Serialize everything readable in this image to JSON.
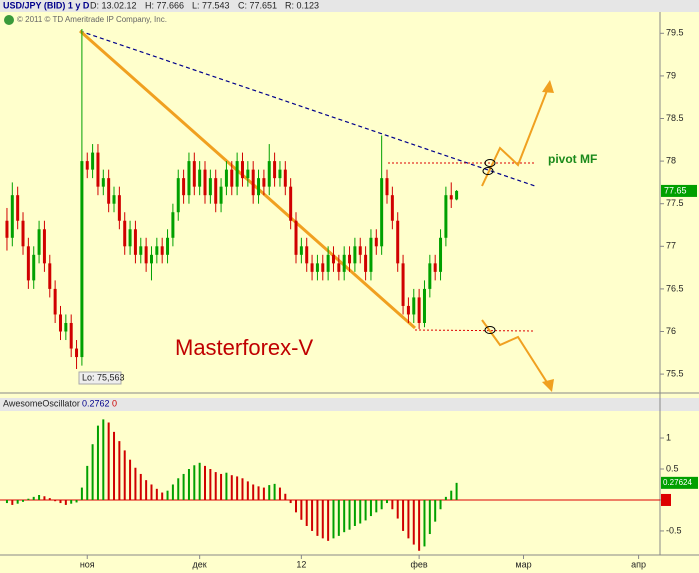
{
  "header": {
    "symbol": "USD/JPY (BID) 1 y D",
    "date": "D: 13.02.12",
    "high": "H: 77.666",
    "low": "L: 77.543",
    "close": "C: 77.651",
    "range": "R: 0.123",
    "copyright": "© 2011 © TD Ameritrade IP Company, Inc."
  },
  "annotations": {
    "title": "Masterforex-V",
    "pivot": "pivot MF",
    "low_label": "Lo: 75,563"
  },
  "chart_data": [
    {
      "type": "candlestick",
      "last_label": "77.65",
      "x": [
        0,
        1,
        2,
        3,
        4,
        5,
        6,
        7,
        8,
        9,
        10,
        11,
        12,
        13,
        14,
        15,
        16,
        17,
        18,
        19,
        20,
        21,
        22,
        23,
        24,
        25,
        26,
        27,
        28,
        29,
        30,
        31,
        32,
        33,
        34,
        35,
        36,
        37,
        38,
        39,
        40,
        41,
        42,
        43,
        44,
        45,
        46,
        47,
        48,
        49,
        50,
        51,
        52,
        53,
        54,
        55,
        56,
        57,
        58,
        59,
        60,
        61,
        62,
        63,
        64,
        65,
        66,
        67,
        68,
        69,
        70,
        71,
        72,
        73,
        74,
        75,
        76,
        77,
        78,
        79,
        80,
        81,
        82,
        83,
        84
      ],
      "open": [
        77.3,
        77.1,
        77.6,
        77.3,
        77.0,
        76.6,
        76.9,
        77.2,
        76.8,
        76.5,
        76.2,
        76.0,
        76.1,
        75.8,
        75.7,
        78.0,
        77.9,
        78.1,
        77.7,
        77.8,
        77.5,
        77.6,
        77.3,
        77.0,
        77.2,
        76.9,
        77.0,
        76.8,
        76.9,
        77.0,
        76.9,
        77.1,
        77.4,
        77.8,
        77.6,
        78.0,
        77.7,
        77.9,
        77.6,
        77.8,
        77.5,
        77.7,
        77.9,
        77.7,
        78.0,
        77.8,
        77.9,
        77.6,
        77.8,
        77.7,
        78.0,
        77.8,
        77.9,
        77.7,
        77.3,
        76.9,
        77.0,
        76.8,
        76.7,
        76.8,
        76.7,
        76.9,
        76.8,
        76.7,
        76.9,
        76.8,
        77.0,
        76.9,
        76.7,
        77.1,
        77.0,
        77.8,
        77.6,
        77.3,
        76.8,
        76.3,
        76.2,
        76.4,
        76.1,
        76.5,
        76.8,
        76.7,
        77.1,
        77.6,
        77.55
      ],
      "high": [
        77.45,
        77.75,
        77.7,
        77.4,
        77.1,
        77.0,
        77.3,
        77.3,
        76.9,
        76.6,
        76.3,
        76.2,
        76.2,
        75.9,
        79.55,
        78.1,
        78.2,
        78.2,
        77.9,
        77.9,
        77.7,
        77.7,
        77.4,
        77.3,
        77.3,
        77.1,
        77.1,
        77.0,
        77.1,
        77.1,
        77.2,
        77.5,
        77.9,
        77.9,
        78.1,
        78.1,
        78.0,
        78.0,
        77.9,
        77.9,
        77.8,
        78.0,
        78.0,
        78.1,
        78.1,
        78.0,
        78.0,
        77.9,
        77.9,
        78.2,
        78.1,
        78.0,
        78.0,
        77.8,
        77.4,
        77.1,
        77.1,
        76.9,
        76.9,
        76.9,
        77.0,
        77.0,
        76.9,
        77.0,
        77.0,
        77.1,
        77.1,
        77.0,
        77.2,
        77.2,
        78.3,
        77.9,
        77.7,
        77.4,
        76.9,
        76.4,
        76.5,
        76.5,
        76.6,
        76.9,
        76.9,
        77.2,
        77.7,
        77.75,
        77.66
      ],
      "low": [
        76.95,
        77.0,
        77.2,
        76.9,
        76.5,
        76.5,
        76.8,
        76.7,
        76.4,
        76.1,
        75.9,
        75.9,
        75.7,
        75.56,
        75.6,
        77.8,
        77.8,
        77.6,
        77.6,
        77.4,
        77.4,
        77.2,
        76.9,
        76.9,
        76.8,
        76.8,
        76.7,
        76.6,
        76.8,
        76.8,
        76.8,
        77.0,
        77.3,
        77.5,
        77.5,
        77.6,
        77.6,
        77.5,
        77.5,
        77.4,
        77.4,
        77.6,
        77.6,
        77.6,
        77.7,
        77.7,
        77.5,
        77.5,
        77.6,
        77.6,
        77.7,
        77.7,
        77.6,
        77.2,
        76.8,
        76.8,
        76.7,
        76.6,
        76.6,
        76.6,
        76.6,
        76.7,
        76.6,
        76.6,
        76.7,
        76.7,
        76.8,
        76.6,
        76.6,
        76.9,
        76.9,
        77.5,
        77.2,
        76.7,
        76.2,
        76.1,
        76.1,
        76.03,
        76.05,
        76.4,
        76.6,
        76.6,
        77.0,
        77.45,
        77.54
      ],
      "close": [
        77.1,
        77.6,
        77.3,
        77.0,
        76.6,
        76.9,
        77.2,
        76.8,
        76.5,
        76.2,
        76.0,
        76.1,
        75.8,
        75.7,
        78.0,
        77.9,
        78.1,
        77.7,
        77.8,
        77.5,
        77.6,
        77.3,
        77.0,
        77.2,
        76.9,
        77.0,
        76.8,
        76.9,
        77.0,
        76.9,
        77.1,
        77.4,
        77.8,
        77.6,
        78.0,
        77.7,
        77.9,
        77.6,
        77.8,
        77.5,
        77.7,
        77.9,
        77.7,
        78.0,
        77.8,
        77.9,
        77.6,
        77.8,
        77.7,
        78.0,
        77.8,
        77.9,
        77.7,
        77.3,
        76.9,
        77.0,
        76.8,
        76.7,
        76.8,
        76.7,
        76.9,
        76.8,
        76.7,
        76.9,
        76.8,
        77.0,
        76.9,
        76.7,
        77.1,
        77.0,
        77.8,
        77.6,
        77.3,
        76.8,
        76.3,
        76.2,
        76.4,
        76.1,
        76.5,
        76.8,
        76.7,
        77.1,
        77.6,
        77.55,
        77.65
      ],
      "up_color": "#00a000",
      "down_color": "#d00000",
      "xlim": [
        -1.3,
        122
      ],
      "xticks": [
        {
          "value": 15,
          "label": "ноя"
        },
        {
          "value": 36,
          "label": "дек"
        },
        {
          "value": 55,
          "label": "12"
        },
        {
          "value": 77,
          "label": "фев"
        },
        {
          "value": 96.5,
          "label": "мар"
        },
        {
          "value": 118,
          "label": "апр"
        }
      ],
      "ylim": [
        75.29,
        79.75
      ],
      "yticks": [
        75.5,
        76,
        76.5,
        77,
        77.5,
        78,
        78.5,
        79,
        79.5
      ]
    },
    {
      "type": "bar",
      "title": "AwesomeOscillator",
      "value_text": "0.2762",
      "zero_text": "0",
      "last_label": "0.27624",
      "x": [
        0,
        1,
        2,
        3,
        4,
        5,
        6,
        7,
        8,
        9,
        10,
        11,
        12,
        13,
        14,
        15,
        16,
        17,
        18,
        19,
        20,
        21,
        22,
        23,
        24,
        25,
        26,
        27,
        28,
        29,
        30,
        31,
        32,
        33,
        34,
        35,
        36,
        37,
        38,
        39,
        40,
        41,
        42,
        43,
        44,
        45,
        46,
        47,
        48,
        49,
        50,
        51,
        52,
        53,
        54,
        55,
        56,
        57,
        58,
        59,
        60,
        61,
        62,
        63,
        64,
        65,
        66,
        67,
        68,
        69,
        70,
        71,
        72,
        73,
        74,
        75,
        76,
        77,
        78,
        79,
        80,
        81,
        82,
        83,
        84
      ],
      "values": [
        -0.05,
        -0.08,
        -0.06,
        -0.03,
        0.02,
        0.05,
        0.08,
        0.06,
        0.03,
        -0.02,
        -0.05,
        -0.08,
        -0.06,
        -0.04,
        0.2,
        0.55,
        0.9,
        1.2,
        1.3,
        1.25,
        1.1,
        0.95,
        0.8,
        0.65,
        0.52,
        0.42,
        0.32,
        0.25,
        0.18,
        0.12,
        0.15,
        0.25,
        0.35,
        0.42,
        0.5,
        0.56,
        0.6,
        0.55,
        0.5,
        0.45,
        0.42,
        0.44,
        0.4,
        0.38,
        0.35,
        0.3,
        0.25,
        0.22,
        0.2,
        0.24,
        0.26,
        0.2,
        0.1,
        -0.05,
        -0.2,
        -0.32,
        -0.42,
        -0.5,
        -0.58,
        -0.62,
        -0.66,
        -0.62,
        -0.58,
        -0.52,
        -0.48,
        -0.42,
        -0.38,
        -0.33,
        -0.26,
        -0.2,
        -0.15,
        -0.05,
        -0.15,
        -0.3,
        -0.5,
        -0.62,
        -0.72,
        -0.82,
        -0.75,
        -0.55,
        -0.35,
        -0.15,
        0.05,
        0.15,
        0.2762
      ],
      "up_color": "#00a000",
      "down_color": "#d00000",
      "xlim": [
        -1.3,
        122
      ],
      "ylim": [
        -0.84,
        1.42
      ],
      "yticks": [
        -0.5,
        0,
        0.5,
        1
      ]
    }
  ]
}
